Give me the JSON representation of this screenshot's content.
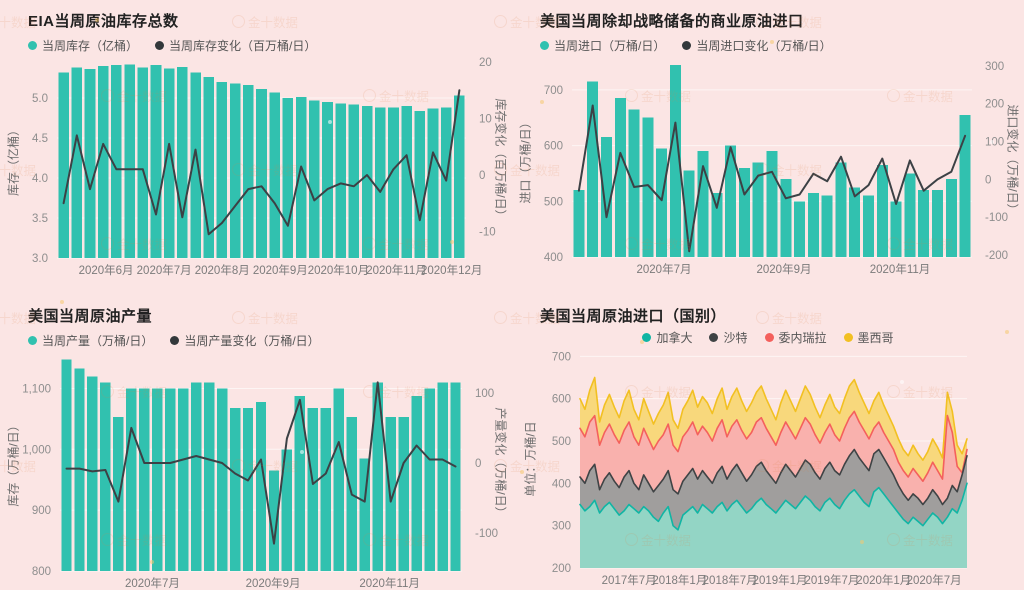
{
  "page": {
    "background": "#fbe5e4"
  },
  "watermark": {
    "text": "金十数据"
  },
  "chart_data": [
    {
      "type": "bar+line",
      "title": "EIA当周原油库存总数",
      "legend": [
        {
          "label": "当周库存（亿桶）",
          "color": "#31c1af"
        },
        {
          "label": "当周库存变化（百万桶/日）",
          "color": "#33383b"
        }
      ],
      "left_axis": {
        "label": "库存（亿桶）",
        "min": 3.0,
        "max": 5.45,
        "ticks": [
          {
            "v": 3.0,
            "t": "3.0"
          },
          {
            "v": 3.5,
            "t": "3.5"
          },
          {
            "v": 4.0,
            "t": "4.0"
          },
          {
            "v": 4.5,
            "t": "4.5"
          },
          {
            "v": 5.0,
            "t": "5.0"
          }
        ]
      },
      "right_axis": {
        "label": "库存变化（百万桶/日）",
        "min": -14.7,
        "max": 20,
        "ticks": [
          {
            "v": -10,
            "t": "-10"
          },
          {
            "v": 0,
            "t": "0"
          },
          {
            "v": 10,
            "t": "10"
          },
          {
            "v": 20,
            "t": "20"
          }
        ]
      },
      "x_ticks": [
        {
          "t": "2020年6月",
          "p": 0.12
        },
        {
          "t": "2020年7月",
          "p": 0.262
        },
        {
          "t": "2020年8月",
          "p": 0.404
        },
        {
          "t": "2020年9月",
          "p": 0.546
        },
        {
          "t": "2020年10月",
          "p": 0.688
        },
        {
          "t": "2020年11月",
          "p": 0.83
        },
        {
          "t": "2020年12月",
          "p": 0.965
        }
      ],
      "bars": {
        "name": "当周库存（亿桶）",
        "color": "#31c1af",
        "values": [
          5.32,
          5.38,
          5.36,
          5.4,
          5.41,
          5.42,
          5.38,
          5.41,
          5.37,
          5.39,
          5.32,
          5.26,
          5.2,
          5.18,
          5.16,
          5.11,
          5.07,
          5.0,
          5.01,
          4.97,
          4.95,
          4.93,
          4.92,
          4.9,
          4.88,
          4.88,
          4.9,
          4.84,
          4.87,
          4.88,
          5.03
        ]
      },
      "line": {
        "name": "当周库存变化（百万桶/日）",
        "color": "#3c4145",
        "values": [
          -5,
          7,
          -2.5,
          5.5,
          1,
          1,
          1,
          -7,
          5.5,
          -7.5,
          4.5,
          -10.5,
          -8.5,
          -5.5,
          -2.5,
          -2,
          -5,
          -9,
          1.5,
          -4.5,
          -2.5,
          -1.5,
          -2,
          0,
          -3,
          1,
          3.5,
          -8,
          4,
          -1,
          15
        ]
      }
    },
    {
      "type": "bar+line",
      "title": "美国当周除却战略储备的商业原油进口",
      "legend": [
        {
          "label": "当周进口（万桶/日）",
          "color": "#31c1af"
        },
        {
          "label": "当周进口变化（万桶/日）",
          "color": "#33383b"
        }
      ],
      "left_axis": {
        "label": "进口（万桶/日）",
        "min": 400,
        "max": 750,
        "ticks": [
          {
            "v": 400,
            "t": "400"
          },
          {
            "v": 500,
            "t": "500"
          },
          {
            "v": 600,
            "t": "600"
          },
          {
            "v": 700,
            "t": "700"
          }
        ]
      },
      "right_axis": {
        "label": "进口变化（万桶/日）",
        "min": -205,
        "max": 310,
        "ticks": [
          {
            "v": -200,
            "t": "-200"
          },
          {
            "v": -100,
            "t": "-100"
          },
          {
            "v": 0,
            "t": "0"
          },
          {
            "v": 100,
            "t": "100"
          },
          {
            "v": 200,
            "t": "200"
          },
          {
            "v": 300,
            "t": "300"
          }
        ]
      },
      "x_ticks": [
        {
          "t": "2020年7月",
          "p": 0.23
        },
        {
          "t": "2020年9月",
          "p": 0.53
        },
        {
          "t": "2020年11月",
          "p": 0.82
        }
      ],
      "bars": {
        "name": "当周进口（万桶/日）",
        "color": "#31c1af",
        "values": [
          520,
          715,
          615,
          685,
          665,
          650,
          595,
          745,
          555,
          590,
          515,
          600,
          560,
          570,
          590,
          540,
          500,
          515,
          510,
          570,
          525,
          510,
          565,
          500,
          550,
          520,
          520,
          540,
          655
        ]
      },
      "line": {
        "name": "当周进口变化（万桶/日）",
        "color": "#3c4145",
        "values": [
          -30,
          195,
          -100,
          70,
          -20,
          -15,
          -55,
          150,
          -190,
          35,
          -75,
          85,
          -40,
          10,
          20,
          -50,
          -40,
          15,
          -5,
          60,
          -45,
          -15,
          55,
          -65,
          50,
          -30,
          0,
          20,
          115
        ]
      }
    },
    {
      "type": "bar+line",
      "title": "美国当周原油产量",
      "legend": [
        {
          "label": "当周产量（万桶/日）",
          "color": "#31c1af"
        },
        {
          "label": "当周产量变化（万桶/日）",
          "color": "#33383b"
        }
      ],
      "left_axis": {
        "label": "库存（万桶/日）",
        "min": 800,
        "max": 1155,
        "ticks": [
          {
            "v": 800,
            "t": "800"
          },
          {
            "v": 900,
            "t": "900"
          },
          {
            "v": 1000,
            "t": "1,000"
          },
          {
            "v": 1100,
            "t": "1,100"
          }
        ]
      },
      "right_axis": {
        "label": "产量变化（万桶/日）",
        "min": -154,
        "max": 154,
        "ticks": [
          {
            "v": -100,
            "t": "-100"
          },
          {
            "v": 0,
            "t": "0"
          },
          {
            "v": 100,
            "t": "100"
          }
        ]
      },
      "x_ticks": [
        {
          "t": "2020年7月",
          "p": 0.23
        },
        {
          "t": "2020年9月",
          "p": 0.53
        },
        {
          "t": "2020年11月",
          "p": 0.82
        }
      ],
      "bars": {
        "name": "当周产量（万桶/日）",
        "color": "#31c1af",
        "values": [
          1148,
          1133,
          1120,
          1110,
          1053,
          1100,
          1100,
          1100,
          1100,
          1100,
          1110,
          1110,
          1100,
          1068,
          1068,
          1078,
          965,
          1000,
          1088,
          1068,
          1068,
          1100,
          1053,
          985,
          1110,
          1053,
          1053,
          1088,
          1100,
          1110,
          1110
        ]
      },
      "line": {
        "name": "当周产量变化（万桶/日）",
        "color": "#3c4145",
        "values": [
          -8,
          -8,
          -12,
          -10,
          -55,
          50,
          0,
          0,
          0,
          5,
          10,
          5,
          0,
          -15,
          -25,
          5,
          -115,
          35,
          90,
          -30,
          -15,
          30,
          -45,
          -55,
          115,
          -55,
          0,
          25,
          5,
          5,
          -5
        ]
      }
    },
    {
      "type": "area",
      "title": "美国当周原油进口（国别）",
      "legend": [
        {
          "label": "加拿大",
          "color": "#10b5a4"
        },
        {
          "label": "沙特",
          "color": "#3f4345"
        },
        {
          "label": "委内瑞拉",
          "color": "#f4605c"
        },
        {
          "label": "墨西哥",
          "color": "#f2c022"
        }
      ],
      "left_axis": {
        "label": "单位：万桶/日",
        "min": 200,
        "max": 715,
        "ticks": [
          {
            "v": 200,
            "t": "200"
          },
          {
            "v": 300,
            "t": "300"
          },
          {
            "v": 400,
            "t": "400"
          },
          {
            "v": 500,
            "t": "500"
          },
          {
            "v": 600,
            "t": "600"
          },
          {
            "v": 700,
            "t": "700"
          }
        ]
      },
      "x_ticks": [
        {
          "t": "2017年7月",
          "p": 0.127
        },
        {
          "t": "2018年1月",
          "p": 0.258
        },
        {
          "t": "2018年7月",
          "p": 0.388
        },
        {
          "t": "2019年1月",
          "p": 0.517
        },
        {
          "t": "2019年7月",
          "p": 0.651
        },
        {
          "t": "2020年1月",
          "p": 0.785
        },
        {
          "t": "2020年7月",
          "p": 0.915
        }
      ],
      "series": [
        {
          "name": "墨西哥",
          "line_color": "#f2c022",
          "fill_color": "#f8d87c",
          "values": [
            600,
            575,
            620,
            650,
            545,
            585,
            610,
            580,
            555,
            595,
            620,
            575,
            550,
            600,
            570,
            540,
            565,
            585,
            615,
            550,
            530,
            575,
            595,
            620,
            580,
            605,
            590,
            565,
            600,
            625,
            575,
            605,
            625,
            595,
            570,
            590,
            615,
            630,
            600,
            575,
            550,
            590,
            620,
            595,
            570,
            600,
            630,
            610,
            580,
            555,
            585,
            610,
            580,
            565,
            600,
            630,
            645,
            615,
            590,
            565,
            595,
            615,
            585,
            560,
            535,
            505,
            480,
            465,
            490,
            470,
            455,
            475,
            505,
            485,
            460,
            615,
            570,
            490,
            470,
            505
          ]
        },
        {
          "name": "委内瑞拉",
          "line_color": "#f4605c",
          "fill_color": "#f9b1ad",
          "values": [
            530,
            510,
            545,
            560,
            490,
            520,
            540,
            515,
            495,
            525,
            545,
            510,
            490,
            530,
            505,
            480,
            500,
            515,
            540,
            490,
            475,
            510,
            525,
            545,
            515,
            535,
            520,
            500,
            530,
            550,
            510,
            535,
            550,
            525,
            505,
            520,
            545,
            555,
            530,
            510,
            490,
            520,
            545,
            525,
            505,
            530,
            555,
            540,
            515,
            495,
            520,
            540,
            515,
            500,
            530,
            555,
            570,
            545,
            525,
            505,
            530,
            545,
            520,
            500,
            480,
            450,
            430,
            415,
            435,
            420,
            405,
            425,
            450,
            430,
            410,
            560,
            520,
            440,
            425,
            480
          ]
        },
        {
          "name": "沙特",
          "line_color": "#3f4345",
          "fill_color": "#a09e9d",
          "values": [
            415,
            400,
            430,
            445,
            385,
            410,
            425,
            405,
            390,
            415,
            430,
            400,
            385,
            420,
            400,
            380,
            395,
            410,
            430,
            385,
            375,
            405,
            420,
            435,
            410,
            430,
            415,
            400,
            425,
            440,
            410,
            430,
            445,
            425,
            405,
            420,
            440,
            450,
            430,
            415,
            400,
            425,
            445,
            430,
            415,
            435,
            455,
            445,
            425,
            410,
            435,
            450,
            430,
            420,
            445,
            465,
            480,
            460,
            445,
            430,
            470,
            480,
            460,
            440,
            420,
            395,
            375,
            360,
            375,
            365,
            350,
            365,
            385,
            370,
            350,
            365,
            395,
            380,
            420,
            465
          ]
        },
        {
          "name": "加拿大",
          "line_color": "#10b5a4",
          "fill_color": "#93d5c5",
          "values": [
            350,
            335,
            345,
            360,
            330,
            345,
            355,
            340,
            325,
            335,
            350,
            340,
            330,
            345,
            335,
            320,
            310,
            330,
            345,
            300,
            290,
            325,
            335,
            345,
            330,
            350,
            340,
            330,
            345,
            355,
            335,
            350,
            360,
            345,
            330,
            340,
            355,
            365,
            350,
            340,
            330,
            345,
            360,
            350,
            340,
            355,
            370,
            360,
            345,
            335,
            355,
            365,
            350,
            340,
            360,
            375,
            385,
            370,
            355,
            345,
            380,
            390,
            375,
            360,
            345,
            330,
            315,
            305,
            320,
            310,
            300,
            315,
            330,
            320,
            305,
            320,
            340,
            330,
            360,
            400
          ]
        }
      ]
    }
  ]
}
